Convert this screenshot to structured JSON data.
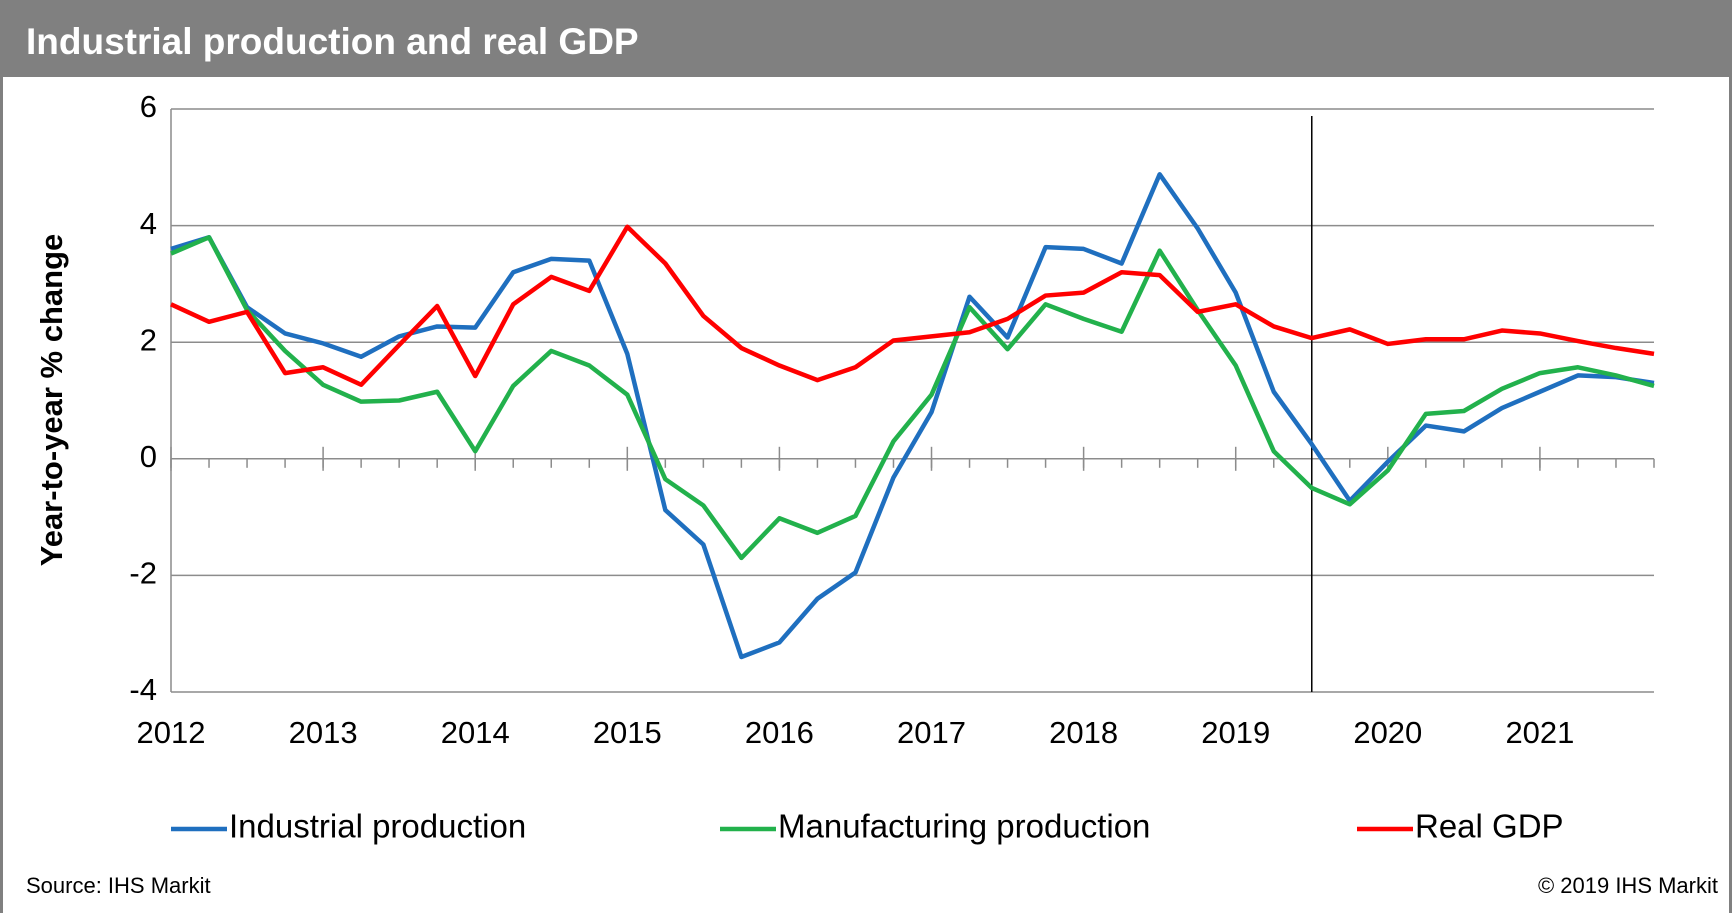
{
  "chart_data": {
    "type": "line",
    "title": "Industrial production and real GDP",
    "ylabel": "Year-to-year % change",
    "source": "Source: IHS Markit",
    "copyright": "© 2019 IHS Markit",
    "x": [
      2012,
      2012.25,
      2012.5,
      2012.75,
      2013,
      2013.25,
      2013.5,
      2013.75,
      2014,
      2014.25,
      2014.5,
      2014.75,
      2015,
      2015.25,
      2015.5,
      2015.75,
      2016,
      2016.25,
      2016.5,
      2016.75,
      2017,
      2017.25,
      2017.5,
      2017.75,
      2018,
      2018.25,
      2018.5,
      2018.75,
      2019,
      2019.25,
      2019.5,
      2019.75,
      2020,
      2020.25,
      2020.5,
      2020.75,
      2021,
      2021.25,
      2021.5,
      2021.75
    ],
    "xlim": [
      2012,
      2021.75
    ],
    "xticks": [
      2012,
      2013,
      2014,
      2015,
      2016,
      2017,
      2018,
      2019,
      2020,
      2021
    ],
    "ylim": [
      -4,
      6
    ],
    "yticks": [
      -4,
      -2,
      0,
      2,
      4,
      6
    ],
    "grid": true,
    "vline": 2019.5,
    "legend": "bottom",
    "series": [
      {
        "name": "Industrial production",
        "color": "#1f6fbf",
        "values": [
          3.6,
          3.8,
          2.6,
          2.15,
          1.98,
          1.75,
          2.1,
          2.27,
          2.25,
          3.2,
          3.43,
          3.4,
          1.8,
          -0.88,
          -1.47,
          -3.4,
          -3.15,
          -2.4,
          -1.95,
          -0.32,
          0.8,
          2.78,
          2.08,
          3.63,
          3.6,
          3.35,
          4.88,
          3.95,
          2.85,
          1.15,
          0.25,
          -0.72,
          -0.05,
          0.57,
          0.47,
          0.87,
          1.15,
          1.43,
          1.4,
          1.3
        ]
      },
      {
        "name": "Manufacturing production",
        "color": "#22b14c",
        "values": [
          3.52,
          3.8,
          2.55,
          1.85,
          1.27,
          0.98,
          1.0,
          1.15,
          0.13,
          1.25,
          1.85,
          1.6,
          1.1,
          -0.35,
          -0.8,
          -1.7,
          -1.02,
          -1.27,
          -0.98,
          0.3,
          1.1,
          2.6,
          1.88,
          2.65,
          2.4,
          2.18,
          3.57,
          2.55,
          1.6,
          0.13,
          -0.5,
          -0.78,
          -0.2,
          0.77,
          0.82,
          1.2,
          1.47,
          1.57,
          1.43,
          1.25
        ]
      },
      {
        "name": "Real GDP",
        "color": "#ff0000",
        "values": [
          2.65,
          2.35,
          2.52,
          1.47,
          1.57,
          1.27,
          1.95,
          2.62,
          1.42,
          2.65,
          3.12,
          2.88,
          3.98,
          3.35,
          2.45,
          1.9,
          1.6,
          1.35,
          1.57,
          2.03,
          2.1,
          2.17,
          2.4,
          2.8,
          2.85,
          3.2,
          3.15,
          2.52,
          2.65,
          2.27,
          2.07,
          2.22,
          1.97,
          2.05,
          2.05,
          2.2,
          2.15,
          2.02,
          1.9,
          1.8
        ]
      }
    ]
  }
}
